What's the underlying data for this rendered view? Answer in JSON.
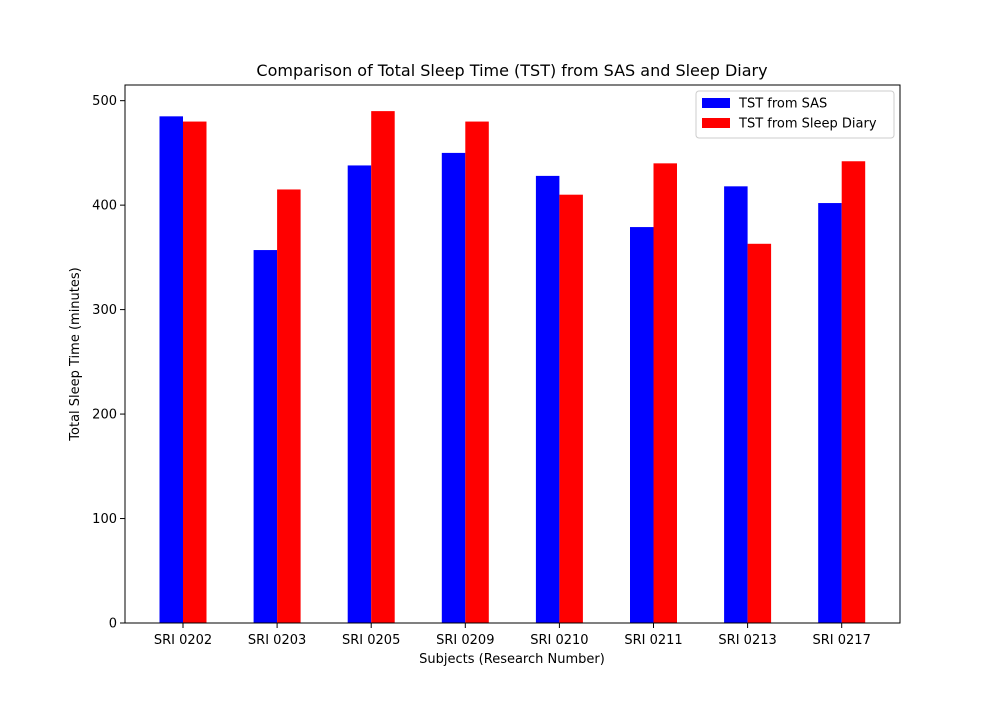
{
  "chart_data": {
    "type": "bar",
    "title": "Comparison of Total Sleep Time (TST) from SAS and Sleep Diary",
    "xlabel": "Subjects (Research Number)",
    "ylabel": "Total Sleep Time (minutes)",
    "categories": [
      "SRI 0202",
      "SRI 0203",
      "SRI 0205",
      "SRI 0209",
      "SRI 0210",
      "SRI 0211",
      "SRI 0213",
      "SRI 0217"
    ],
    "series": [
      {
        "name": "TST from SAS",
        "color": "#0000ff",
        "values": [
          485,
          357,
          438,
          450,
          428,
          379,
          418,
          402
        ]
      },
      {
        "name": "TST from Sleep Diary",
        "color": "#ff0000",
        "values": [
          480,
          415,
          490,
          480,
          410,
          440,
          363,
          442
        ]
      }
    ],
    "ylim": [
      0,
      515
    ],
    "yticks": [
      0,
      100,
      200,
      300,
      400,
      500
    ],
    "grid": false,
    "legend_position": "top-right"
  }
}
